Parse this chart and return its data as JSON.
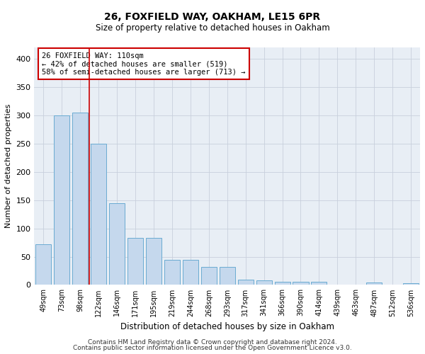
{
  "title1": "26, FOXFIELD WAY, OAKHAM, LE15 6PR",
  "title2": "Size of property relative to detached houses in Oakham",
  "xlabel": "Distribution of detached houses by size in Oakham",
  "ylabel": "Number of detached properties",
  "bar_color": "#c5d8ed",
  "bar_edge_color": "#6aabd2",
  "grid_color": "#c8d0dc",
  "bg_color": "#e8eef5",
  "annotation_box_color": "#cc0000",
  "vline_color": "#cc0000",
  "categories": [
    "49sqm",
    "73sqm",
    "98sqm",
    "122sqm",
    "146sqm",
    "171sqm",
    "195sqm",
    "219sqm",
    "244sqm",
    "268sqm",
    "293sqm",
    "317sqm",
    "341sqm",
    "366sqm",
    "390sqm",
    "414sqm",
    "439sqm",
    "463sqm",
    "487sqm",
    "512sqm",
    "536sqm"
  ],
  "values": [
    72,
    300,
    305,
    250,
    145,
    83,
    83,
    45,
    44,
    32,
    32,
    9,
    8,
    6,
    6,
    6,
    1,
    1,
    4,
    1,
    3
  ],
  "annotation_text": "26 FOXFIELD WAY: 110sqm\n← 42% of detached houses are smaller (519)\n58% of semi-detached houses are larger (713) →",
  "footer1": "Contains HM Land Registry data © Crown copyright and database right 2024.",
  "footer2": "Contains public sector information licensed under the Open Government Licence v3.0.",
  "ylim": [
    0,
    420
  ],
  "yticks": [
    0,
    50,
    100,
    150,
    200,
    250,
    300,
    350,
    400
  ]
}
